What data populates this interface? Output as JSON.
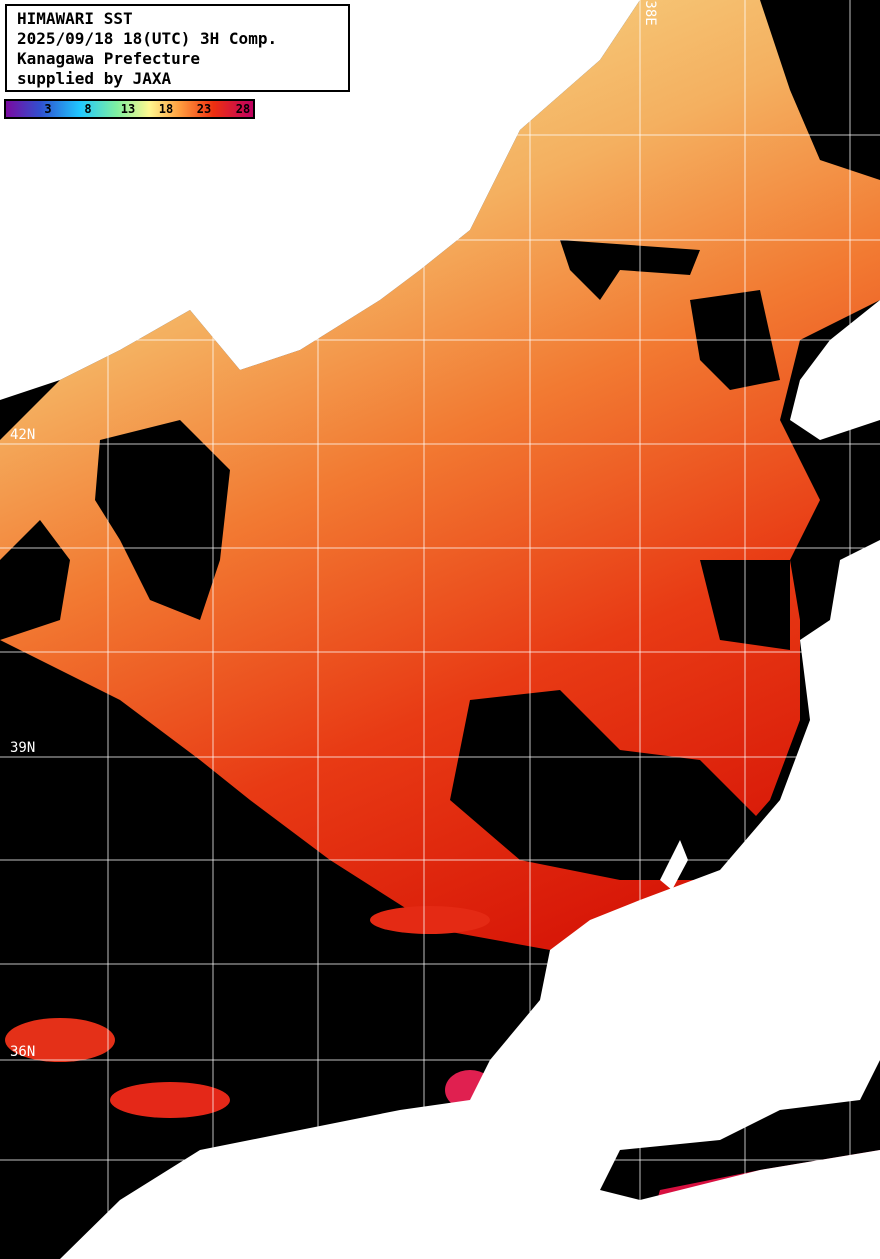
{
  "header": {
    "lines": [
      "HIMAWARI SST",
      "2025/09/18 18(UTC) 3H Comp.",
      "Kanagawa Prefecture",
      "supplied by JAXA"
    ]
  },
  "colorbar": {
    "ticks": [
      "3",
      "8",
      "13",
      "18",
      "23",
      "28"
    ],
    "colors": [
      "#7a0aa0",
      "#3050d0",
      "#20c8ff",
      "#80f0a0",
      "#fff890",
      "#ffa040",
      "#ee3010",
      "#c00060"
    ]
  },
  "grid": {
    "lat_labels": [
      "42N",
      "39N",
      "36N"
    ],
    "lon_labels": [
      "138E"
    ]
  },
  "colors": {
    "land": "#ffffff",
    "cloud": "#000000",
    "sst_cool": "#f6d878",
    "sst_mid": "#f48a3a",
    "sst_warm": "#e4200e"
  }
}
